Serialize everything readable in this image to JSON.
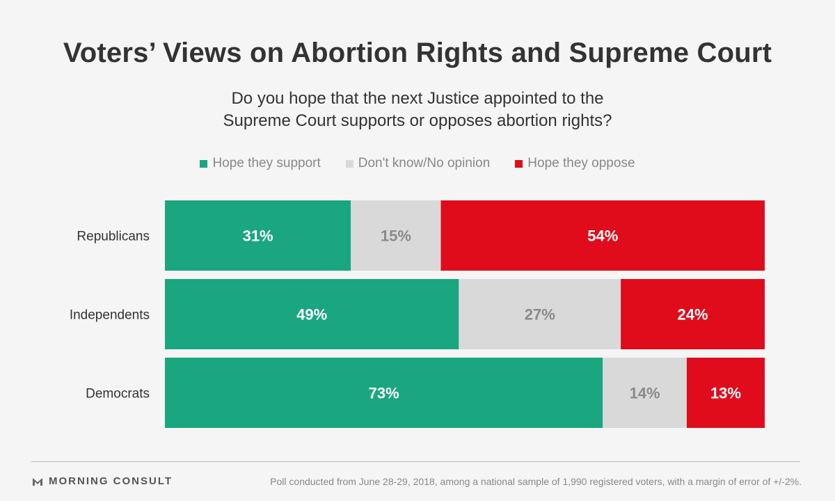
{
  "chart_data": {
    "type": "bar",
    "orientation": "horizontal",
    "stacked": true,
    "title": "Voters’ Views on Abortion Rights and Supreme Court",
    "subtitle_lines": [
      "Do you hope that the next Justice appointed to the",
      "Supreme Court supports or opposes abortion rights?"
    ],
    "categories": [
      "Republicans",
      "Independents",
      "Democrats"
    ],
    "series": [
      {
        "name": "Hope they support",
        "values": [
          31,
          49,
          73
        ],
        "color": "#1aa67f",
        "label_color": "#ffffff"
      },
      {
        "name": "Don't know/No opinion",
        "values": [
          15,
          27,
          14
        ],
        "color": "#d9d9d9",
        "label_color": "#8a8a8a"
      },
      {
        "name": "Hope they oppose",
        "values": [
          54,
          24,
          13
        ],
        "color": "#e00c1b",
        "label_color": "#ffffff"
      }
    ],
    "data_labels": [
      [
        "31%",
        "49%",
        "73%"
      ],
      [
        "15%",
        "27%",
        "14%"
      ],
      [
        "54%",
        "24%",
        "13%"
      ]
    ],
    "xlim": [
      0,
      100
    ],
    "legend_position": "top",
    "grid": false
  },
  "footer": {
    "brand": "MORNING CONSULT",
    "note": "Poll conducted from June 28-29, 2018, among a national sample of 1,990 registered voters, with a margin of error of +/-2%."
  }
}
